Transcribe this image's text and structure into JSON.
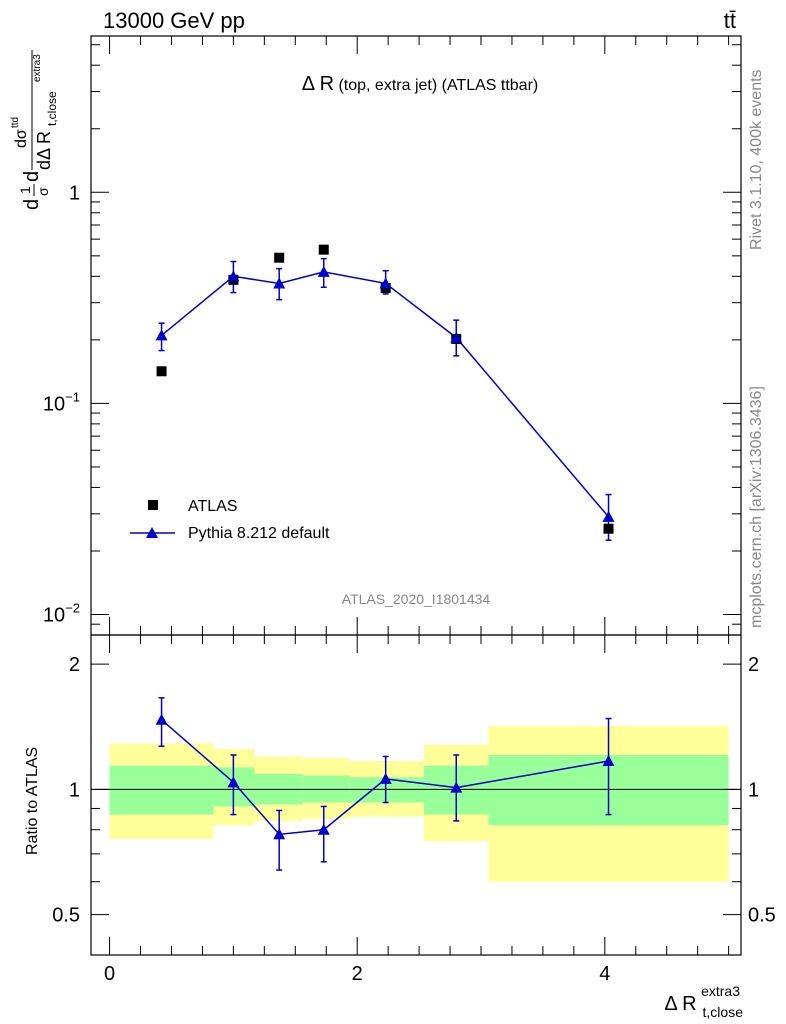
{
  "header": {
    "left": "13000 GeV pp",
    "right": "tt̄"
  },
  "side_labels": {
    "rivet": "Rivet 3.1.10,  400k events",
    "mcplots": "mcplots.cern.ch [arXiv:1306.3436]"
  },
  "chart_data": [
    {
      "type": "scatter",
      "panel": "main",
      "title_main": "Δ R",
      "title_sub": " (top, extra jet) (ATLAS ttbar)",
      "analysis_label": "ATLAS_2020_I1801434",
      "ylabel_parts": {
        "d1": "d",
        "frac_one_num": "1",
        "frac_one_den": "σ",
        "d2": "d",
        "num": "dσ",
        "num_sup": "ttd",
        "den": "dΔ R",
        "den_sub": "t,close",
        "den_sup": "extra3"
      },
      "yscale": "log",
      "ylim": [
        0.008,
        5.5
      ],
      "xlim": [
        -0.15,
        5.1
      ],
      "y_ticks": [
        {
          "value": 1,
          "base": "1",
          "exp": ""
        },
        {
          "value": 0.1,
          "base": "10",
          "exp": "−1"
        },
        {
          "value": 0.01,
          "base": "10",
          "exp": "−2"
        }
      ],
      "legend_position": "bottom-left",
      "series": [
        {
          "name": "ATLAS",
          "marker": "square",
          "color": "#000000",
          "x": [
            0.42,
            1.0,
            1.37,
            1.73,
            2.23,
            2.8,
            4.03
          ],
          "y": [
            0.142,
            0.385,
            0.49,
            0.535,
            0.352,
            0.202,
            0.0255
          ]
        },
        {
          "name": "Pythia 8.212 default",
          "marker": "triangle",
          "color": "#0000cc",
          "x": [
            0.42,
            1.0,
            1.37,
            1.73,
            2.23,
            2.8,
            4.03
          ],
          "y": [
            0.21,
            0.4,
            0.37,
            0.42,
            0.37,
            0.205,
            0.029
          ],
          "y_low": [
            0.178,
            0.335,
            0.31,
            0.355,
            0.33,
            0.168,
            0.0225
          ],
          "y_high": [
            0.24,
            0.47,
            0.435,
            0.485,
            0.425,
            0.248,
            0.037
          ]
        }
      ]
    },
    {
      "type": "scatter",
      "panel": "ratio",
      "ylabel": "Ratio to ATLAS",
      "xlabel_main": "Δ R",
      "xlabel_sup": "extra3",
      "xlabel_sub": "t,close",
      "ylim": [
        0.4,
        2.35
      ],
      "xlim": [
        -0.15,
        5.1
      ],
      "x_ticks": [
        0,
        2,
        4
      ],
      "y_ticks": [
        0.5,
        1,
        2
      ],
      "reference_line": 1,
      "bands": [
        {
          "x0": 0.0,
          "x1": 0.84,
          "y_low_outer": 0.76,
          "y_high_outer": 1.29,
          "y_low_inner": 0.87,
          "y_high_inner": 1.14
        },
        {
          "x0": 0.84,
          "x1": 1.17,
          "y_low_outer": 0.82,
          "y_high_outer": 1.25,
          "y_low_inner": 0.91,
          "y_high_inner": 1.13
        },
        {
          "x0": 1.17,
          "x1": 1.56,
          "y_low_outer": 0.84,
          "y_high_outer": 1.2,
          "y_low_inner": 0.92,
          "y_high_inner": 1.09
        },
        {
          "x0": 1.56,
          "x1": 1.94,
          "y_low_outer": 0.85,
          "y_high_outer": 1.19,
          "y_low_inner": 0.93,
          "y_high_inner": 1.08
        },
        {
          "x0": 1.94,
          "x1": 2.54,
          "y_low_outer": 0.86,
          "y_high_outer": 1.17,
          "y_low_inner": 0.93,
          "y_high_inner": 1.07
        },
        {
          "x0": 2.54,
          "x1": 3.06,
          "y_low_outer": 0.75,
          "y_high_outer": 1.28,
          "y_low_inner": 0.87,
          "y_high_inner": 1.14
        },
        {
          "x0": 3.06,
          "x1": 5.0,
          "y_low_outer": 0.6,
          "y_high_outer": 1.42,
          "y_low_inner": 0.82,
          "y_high_inner": 1.21
        }
      ],
      "series": [
        {
          "name": "Pythia 8.212 default",
          "color": "#0000cc",
          "x": [
            0.42,
            1.0,
            1.37,
            1.73,
            2.23,
            2.8,
            4.03
          ],
          "y": [
            1.47,
            1.04,
            0.78,
            0.8,
            1.06,
            1.01,
            1.17
          ],
          "y_low": [
            1.27,
            0.87,
            0.64,
            0.67,
            0.93,
            0.84,
            0.87
          ],
          "y_high": [
            1.66,
            1.21,
            0.89,
            0.91,
            1.2,
            1.21,
            1.48
          ]
        }
      ]
    }
  ]
}
